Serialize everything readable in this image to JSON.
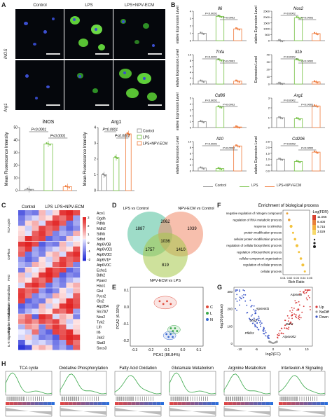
{
  "panel_labels": {
    "a": "A",
    "b": "B",
    "c": "C",
    "d": "D",
    "e": "E",
    "f": "F",
    "g": "G",
    "h": "H"
  },
  "panel_a": {
    "columns": [
      "Control",
      "LPS",
      "LPS+NPV-ECM"
    ],
    "rows": [
      "iNOS",
      "Arg1"
    ]
  },
  "chart_data": [
    {
      "type": "bar",
      "title": "iNOS",
      "ylabel": "Mean Fluorescence Intensity",
      "categories": [
        "Control",
        "LPS",
        "LPS+NPV-ECM"
      ],
      "values": [
        1,
        37,
        3
      ],
      "ylim": [
        0,
        50
      ],
      "yticks": [
        "0",
        "10",
        "20",
        "30",
        "40",
        "50"
      ],
      "annotations": [
        "P<0.0001",
        "P<0.0001"
      ]
    },
    {
      "type": "bar",
      "title": "Arg1",
      "ylabel": "Mean Fluorescence Intensity",
      "categories": [
        "Control",
        "LPS",
        "LPS+NPV-ECM"
      ],
      "values": [
        1,
        2.1,
        3.6
      ],
      "ylim": [
        0,
        4
      ],
      "yticks": [
        "0",
        "1",
        "2",
        "3",
        "4"
      ],
      "annotations": [
        "P=0.0001",
        "P<0.0001"
      ],
      "legend": [
        "Control",
        "LPS",
        "LPS+NPV-ECM"
      ]
    },
    {
      "type": "bar",
      "title": "Il6",
      "ylabel": "Relative Expression Level",
      "categories": [
        "Control",
        "LPS",
        "LPS+NPV-ECM"
      ],
      "values": [
        1,
        3.3,
        1.6
      ],
      "ylim": [
        0,
        4
      ],
      "yticks": [
        "0",
        "1",
        "2",
        "3",
        "4"
      ],
      "annotations": [
        "P<0.0001",
        "P<0.0001"
      ]
    },
    {
      "type": "bar",
      "title": "Nos2",
      "ylabel": "Relative Expression Level",
      "categories": [
        "Control",
        "LPS",
        "LPS+NPV-ECM"
      ],
      "values": [
        1,
        1950,
        600
      ],
      "ylim": [
        0,
        2500
      ],
      "yticks": [
        "0",
        "500",
        "1000",
        "1500",
        "2000",
        "2500"
      ],
      "annotations": [
        "P<0.0001",
        "P<0.0001"
      ]
    },
    {
      "type": "bar",
      "title": "Tnfa",
      "ylabel": "Relative Expression Level",
      "categories": [
        "Control",
        "LPS",
        "LPS+NPV-ECM"
      ],
      "values": [
        1,
        8.2,
        1
      ],
      "ylim": [
        0,
        10
      ],
      "yticks": [
        "0",
        "2",
        "4",
        "6",
        "8",
        "10"
      ],
      "annotations": [
        "P<0.0001",
        "P<0.0001"
      ]
    },
    {
      "type": "bar",
      "title": "Il1b",
      "ylabel": "Expression Level",
      "categories": [
        "Control",
        "LPS",
        "LPS+NPV-ECM"
      ],
      "values": [
        1,
        33,
        3
      ],
      "ylim": [
        0,
        40
      ],
      "yticks": [
        "0",
        "10",
        "20",
        "30",
        "40"
      ],
      "annotations": [
        "P<0.0001",
        "P<0.0001"
      ]
    },
    {
      "type": "bar",
      "title": "Cd86",
      "ylabel": "Relative Expression Level",
      "categories": [
        "Control",
        "LPS",
        "LPS+NPV-ECM"
      ],
      "values": [
        1,
        3.5,
        0.1
      ],
      "ylim": [
        0,
        5
      ],
      "yticks": [
        "0",
        "1",
        "2",
        "3",
        "4",
        "5"
      ],
      "annotations": [
        "P<0.0001",
        "P<0.0001"
      ]
    },
    {
      "type": "bar",
      "title": "Arg1",
      "ylabel": "",
      "categories": [
        "Control",
        "LPS",
        "LPS+NPV-ECM"
      ],
      "values": [
        1,
        0.9,
        2.2
      ],
      "ylim": [
        0,
        3
      ],
      "yticks": [
        "0",
        "1",
        "2",
        "3"
      ],
      "annotations": [
        "P<0.0001",
        "P<0.0001"
      ]
    },
    {
      "type": "bar",
      "title": "Il10",
      "ylabel": "Relative Expression Level",
      "categories": [
        "Control",
        "LPS",
        "LPS+NPV-ECM"
      ],
      "values": [
        1,
        0.8,
        8.5
      ],
      "ylim": [
        0,
        10
      ],
      "yticks": [
        "0",
        "2",
        "4",
        "6",
        "8",
        "10"
      ],
      "annotations": [
        "P<0.0001",
        "P<0.0001"
      ]
    },
    {
      "type": "bar",
      "title": "Cd206",
      "ylabel": "Relative Expression Level",
      "categories": [
        "Control",
        "LPS",
        "LPS+NPV-ECM"
      ],
      "values": [
        1,
        0.8,
        1.6
      ],
      "ylim": [
        0,
        2.5
      ],
      "yticks": [
        "0.0",
        "0.5",
        "1.0",
        "1.5",
        "2.0",
        "2.5"
      ],
      "annotations": [
        "P=0.0002",
        "P<0.0001"
      ]
    }
  ],
  "panel_b_legend": [
    "Control",
    "LPS",
    "LPS+NPV-ECM"
  ],
  "colors": {
    "control": "#8a8a8a",
    "lps": "#74c043",
    "npv": "#f07a3a",
    "venn_a": "#4fbf9a",
    "venn_b": "#f08a6a",
    "venn_c": "#a6c84a"
  },
  "heatmap": {
    "columns": [
      "Control",
      "LPS",
      "LPS+NPV-ECM"
    ],
    "genes": [
      "Aco1",
      "Ogdh",
      "Pdhb",
      "Mdh2",
      "Sdhb",
      "Sdhd",
      "Atp6V0B",
      "Atp6V0D2",
      "Atp6V0D1",
      "Atp6V1F",
      "Atp6V0C",
      "Echs1",
      "Bdh2",
      "Ppard",
      "Hao1",
      "Glul",
      "Pycr2",
      "Gls2",
      "Atp2B4",
      "Slc7A7",
      "Nos2",
      "Tyk2",
      "Lifr",
      "Il6",
      "Jak2",
      "Stat3",
      "Socs3"
    ],
    "groups": [
      "TCA cycle",
      "OxPhos",
      "FAO",
      "Glutamate Metabolism",
      "Arginine Metabolism",
      "IL-6 Signaling"
    ],
    "scale": [
      "3",
      "2",
      "1",
      "0",
      "-1",
      "-2"
    ]
  },
  "venn": {
    "labels": [
      "LPS vs Control",
      "NPV-ECM vs Control",
      "NPV-ECM vs LPS"
    ],
    "counts": [
      "1887",
      "2062",
      "1039",
      "1036",
      "1757",
      "1410",
      "819"
    ]
  },
  "pca": {
    "xlabel": "PCA1 (86.84%)",
    "ylabel": "PCA2 (6.33%)",
    "xticks": [
      "-0.3",
      "-0.2",
      "-0.1",
      "0.0",
      "0.1"
    ],
    "yticks": [
      "-0.2",
      "-0.1",
      "0.0",
      "0.1"
    ],
    "legend": [
      "C",
      "L",
      "N"
    ]
  },
  "enrichment": {
    "title": "Enrichment of biological process",
    "xlabel": "Rich Ratio",
    "xticks": [
      "0.01",
      "0.02",
      "0.03",
      "0.04",
      "0.05"
    ],
    "terms": [
      "negative regulation of nitrogen compound",
      "regulation of RNA metabolic process",
      "response to stimulus",
      "protein modification process",
      "cellular protein modification process",
      "regulation of cellular biosynthetic process",
      "regulation of biosynthetic process",
      "cellular component organization",
      "regulation of cellular process",
      "cellular process"
    ],
    "color_title": "-Log(FDR)",
    "color_ticks": [
      "11.066",
      "8.400",
      "5.715",
      "3.029"
    ]
  },
  "volcano": {
    "xlabel": "log2(FC)",
    "ylabel": "-log10(pValue)",
    "xticks": [
      "-10",
      "-5",
      "0",
      "5",
      "10"
    ],
    "yticks": [
      "0",
      "100",
      "200",
      "300"
    ],
    "labels": [
      "Atp6v0b",
      "Atp6v0d1",
      "Stat3",
      "Bdh2",
      "Pfkfb3",
      "Atp6v0d2"
    ],
    "legend": [
      "Up",
      "NoDiff",
      "Down"
    ]
  },
  "gsea": [
    "TCA cycle",
    "Oxidative Phosphorylation",
    "Fatty Acid Oxidation",
    "Glutamate Metabolism",
    "Arginine Metabolism",
    "Interleukin-6 Signaling"
  ],
  "legend_b": {
    "control": "Control",
    "lps": "LPS",
    "npv": "LPS+NPV-ECM"
  }
}
